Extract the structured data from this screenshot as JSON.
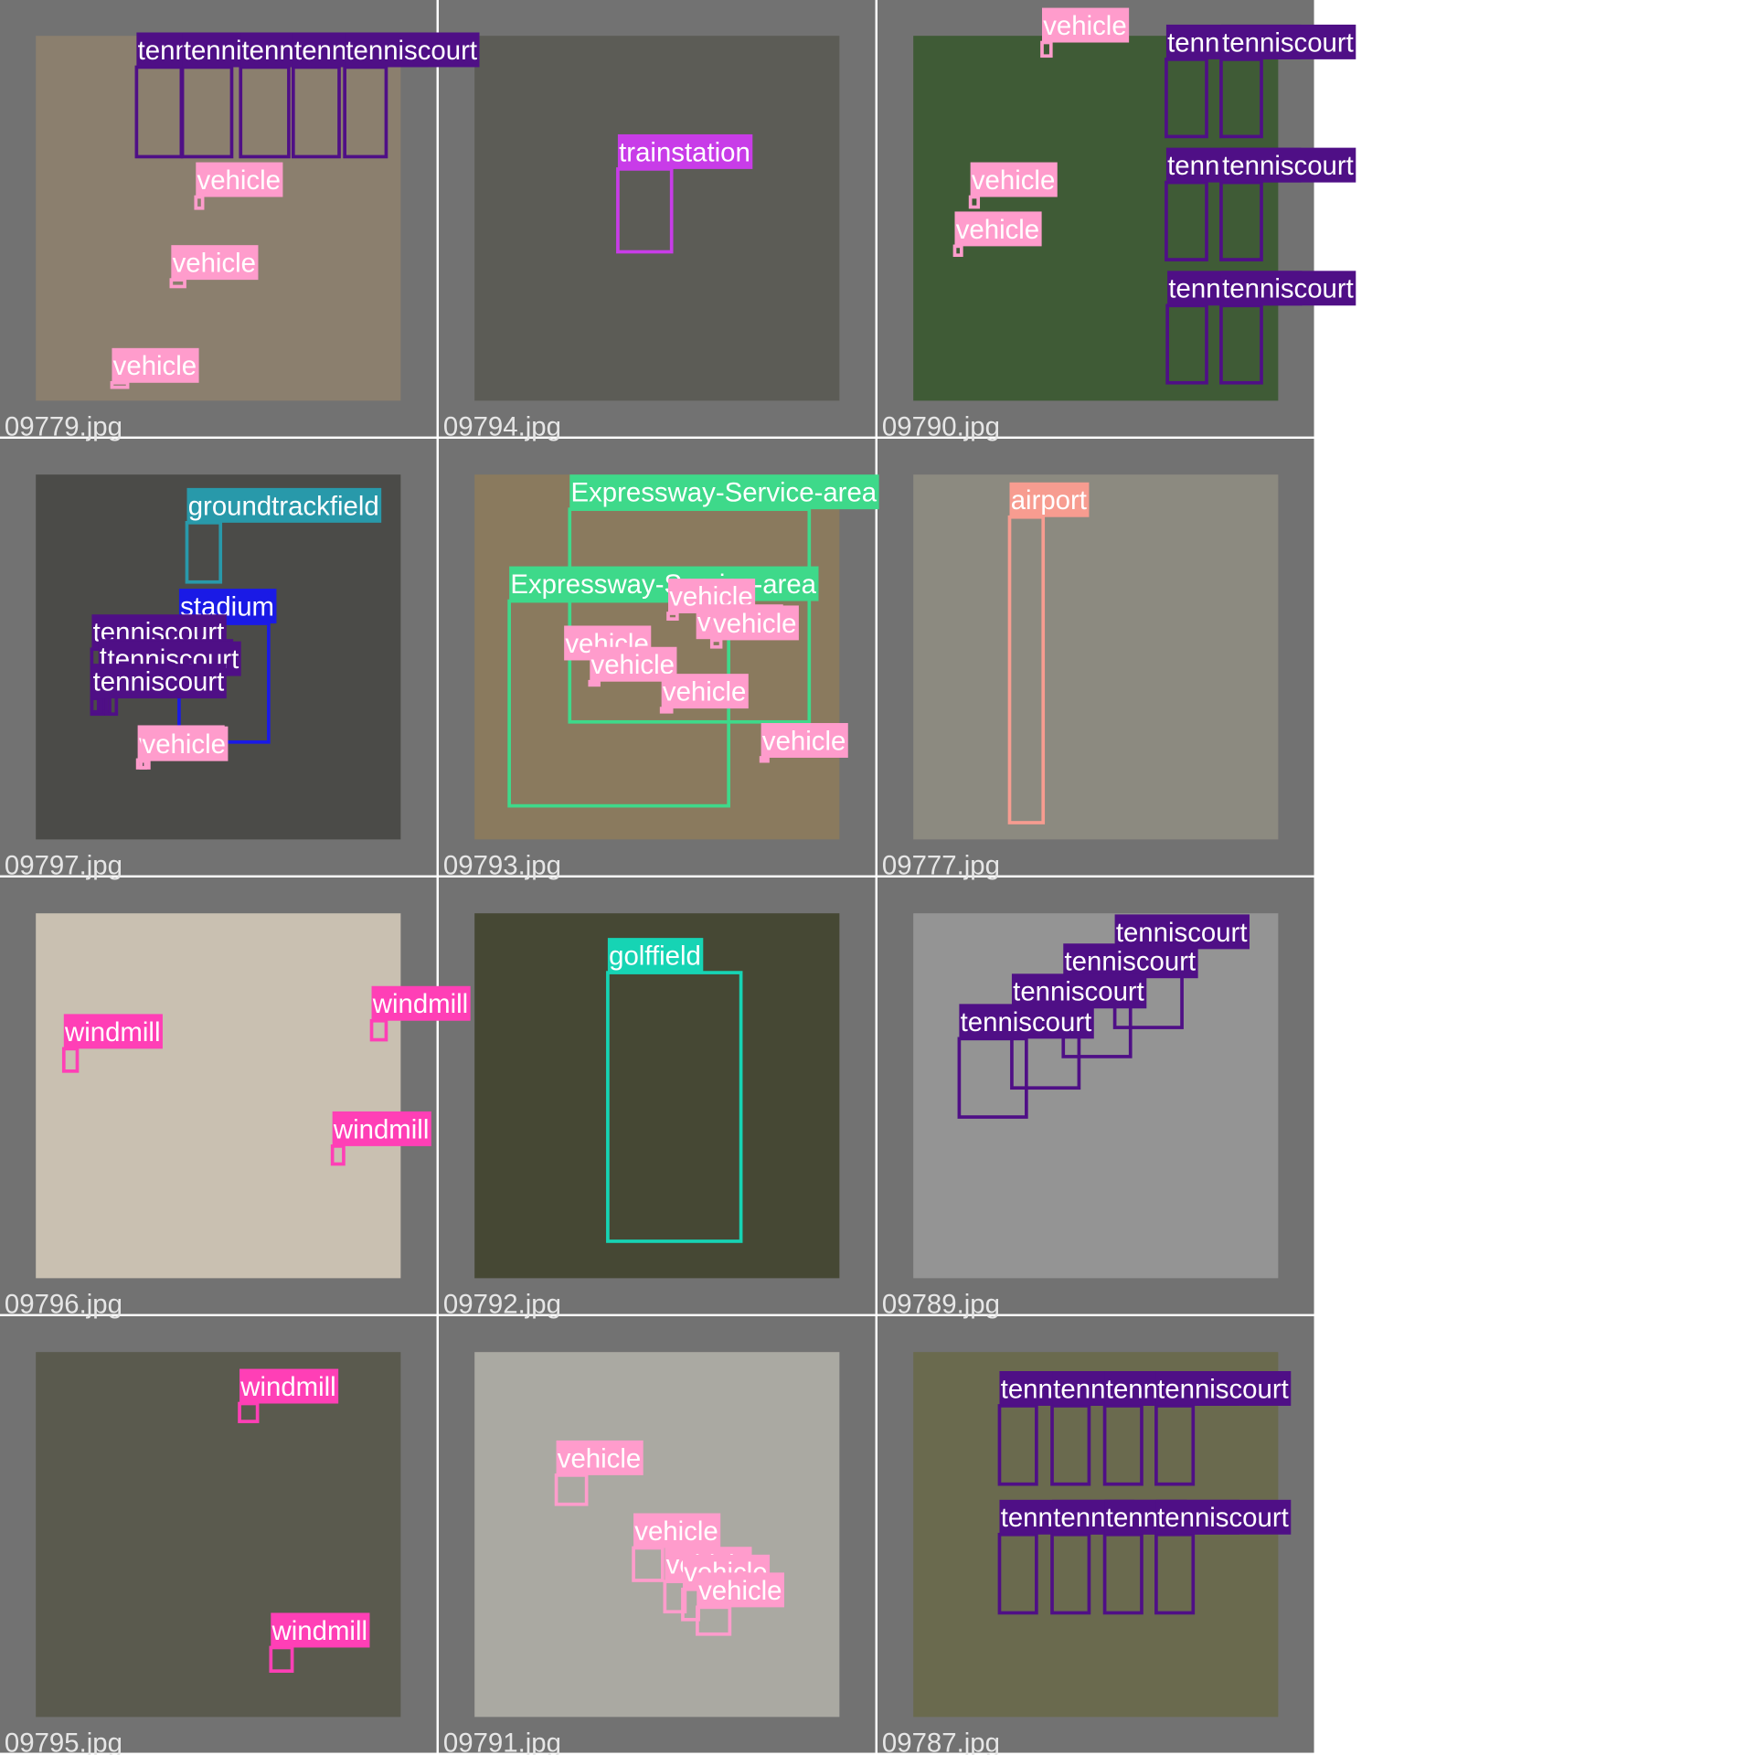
{
  "images": [
    {
      "file": "09779.jpg",
      "detections": [
        "tenniscourt",
        "tenniscourt",
        "tenniscourt",
        "tenniscourt",
        "tenniscourt",
        "vehicle",
        "vehicle",
        "vehicle"
      ]
    },
    {
      "file": "09794.jpg",
      "detections": [
        "trainstation"
      ]
    },
    {
      "file": "09790.jpg",
      "detections": [
        "vehicle",
        "vehicle",
        "vehicle",
        "tenniscourt",
        "tenniscourt",
        "tenniscourt",
        "tenniscourt",
        "tenniscourt",
        "tenniscourt"
      ]
    },
    {
      "file": "09797.jpg",
      "detections": [
        "groundtrackfield",
        "stadium",
        "tenniscourt",
        "tenniscourt",
        "tenniscourt",
        "tenniscourt",
        "vehicle",
        "vehicle"
      ]
    },
    {
      "file": "09793.jpg",
      "detections": [
        "Expressway-Service-area",
        "Expressway-Service-area",
        "vehicle",
        "vehicle",
        "vehicle",
        "vehicle",
        "vehicle",
        "vehicle",
        "vehicle"
      ]
    },
    {
      "file": "09777.jpg",
      "detections": [
        "airport"
      ]
    },
    {
      "file": "09796.jpg",
      "detections": [
        "windmill",
        "windmill",
        "windmill"
      ]
    },
    {
      "file": "09792.jpg",
      "detections": [
        "golffield"
      ]
    },
    {
      "file": "09789.jpg",
      "detections": [
        "tenniscourt",
        "tenniscourt",
        "tenniscourt",
        "tenniscourt"
      ]
    },
    {
      "file": "09795.jpg",
      "detections": [
        "windmill",
        "windmill"
      ]
    },
    {
      "file": "09791.jpg",
      "detections": [
        "vehicle",
        "vehicle",
        "vehicle",
        "vehicle",
        "vehicle"
      ]
    },
    {
      "file": "09787.jpg",
      "detections": [
        "tenniscourt",
        "tenniscourt",
        "tenniscourt",
        "tenniscourt",
        "tenniscourt",
        "tenniscourt",
        "tenniscourt",
        "tenniscourt"
      ]
    }
  ]
}
